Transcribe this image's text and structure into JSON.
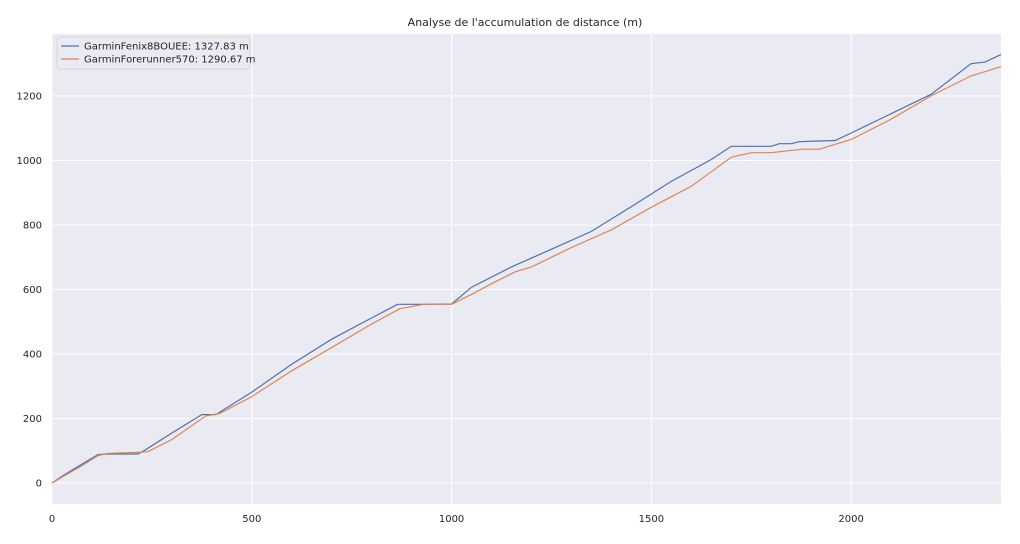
{
  "chart_data": {
    "type": "line",
    "title": "Analyse de l'accumulation de distance (m)",
    "xlabel": "",
    "ylabel": "",
    "xlim": [
      0,
      2375
    ],
    "ylim": [
      -65,
      1392
    ],
    "x_ticks": [
      0,
      500,
      1000,
      1500,
      2000
    ],
    "y_ticks": [
      0,
      200,
      400,
      600,
      800,
      1000,
      1200
    ],
    "grid": true,
    "legend_position": "top-left",
    "series": [
      {
        "name": "GarminFenix8BOUEE: 1327.83 m",
        "color": "#4c72b0",
        "points": [
          [
            0,
            0
          ],
          [
            30,
            25
          ],
          [
            70,
            55
          ],
          [
            115,
            88
          ],
          [
            140,
            90
          ],
          [
            215,
            90
          ],
          [
            230,
            100
          ],
          [
            300,
            155
          ],
          [
            375,
            212
          ],
          [
            410,
            212
          ],
          [
            500,
            282
          ],
          [
            600,
            368
          ],
          [
            700,
            446
          ],
          [
            800,
            512
          ],
          [
            865,
            554
          ],
          [
            930,
            554
          ],
          [
            1000,
            555
          ],
          [
            1050,
            607
          ],
          [
            1150,
            670
          ],
          [
            1250,
            725
          ],
          [
            1350,
            780
          ],
          [
            1450,
            857
          ],
          [
            1550,
            935
          ],
          [
            1650,
            1003
          ],
          [
            1700,
            1044
          ],
          [
            1750,
            1044
          ],
          [
            1800,
            1044
          ],
          [
            1820,
            1052
          ],
          [
            1850,
            1052
          ],
          [
            1870,
            1058
          ],
          [
            1910,
            1060
          ],
          [
            1960,
            1062
          ],
          [
            2000,
            1085
          ],
          [
            2100,
            1145
          ],
          [
            2200,
            1205
          ],
          [
            2300,
            1300
          ],
          [
            2335,
            1305
          ],
          [
            2375,
            1328
          ]
        ]
      },
      {
        "name": "GarminForerunner570: 1290.67 m",
        "color": "#dd8452",
        "points": [
          [
            0,
            0
          ],
          [
            30,
            22
          ],
          [
            70,
            50
          ],
          [
            115,
            85
          ],
          [
            140,
            92
          ],
          [
            210,
            95
          ],
          [
            240,
            97
          ],
          [
            300,
            135
          ],
          [
            385,
            208
          ],
          [
            420,
            216
          ],
          [
            500,
            268
          ],
          [
            600,
            348
          ],
          [
            700,
            420
          ],
          [
            800,
            493
          ],
          [
            870,
            540
          ],
          [
            930,
            554
          ],
          [
            1000,
            554
          ],
          [
            1050,
            585
          ],
          [
            1100,
            618
          ],
          [
            1160,
            655
          ],
          [
            1200,
            670
          ],
          [
            1300,
            730
          ],
          [
            1400,
            785
          ],
          [
            1500,
            855
          ],
          [
            1600,
            920
          ],
          [
            1700,
            1010
          ],
          [
            1750,
            1024
          ],
          [
            1800,
            1024
          ],
          [
            1840,
            1030
          ],
          [
            1880,
            1035
          ],
          [
            1920,
            1035
          ],
          [
            1960,
            1050
          ],
          [
            2000,
            1065
          ],
          [
            2100,
            1128
          ],
          [
            2200,
            1200
          ],
          [
            2300,
            1262
          ],
          [
            2340,
            1277
          ],
          [
            2375,
            1291
          ]
        ]
      }
    ]
  }
}
